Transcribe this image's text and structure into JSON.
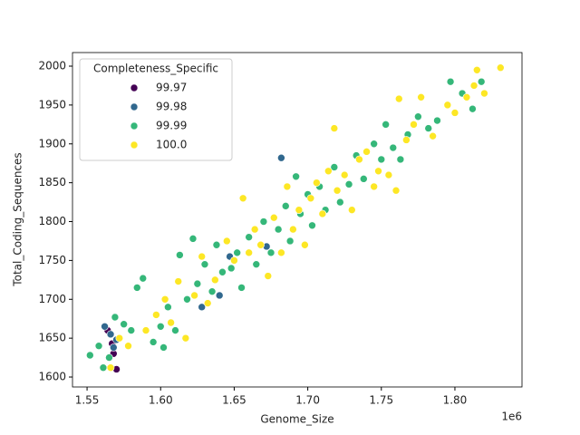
{
  "chart_data": {
    "type": "scatter",
    "x_label": "Genome_Size",
    "y_label": "Total_Coding_Sequences",
    "x_offset_label": "1e6",
    "legend_title": "Completeness_Specific",
    "legend_position": "upper-left",
    "grid": false,
    "xlim": [
      1540100,
      1845600
    ],
    "ylim": [
      1587.2,
      2017.5
    ],
    "xticks": [
      {
        "value": 1550000,
        "label": "1.55"
      },
      {
        "value": 1600000,
        "label": "1.60"
      },
      {
        "value": 1650000,
        "label": "1.65"
      },
      {
        "value": 1700000,
        "label": "1.70"
      },
      {
        "value": 1750000,
        "label": "1.75"
      },
      {
        "value": 1800000,
        "label": "1.80"
      }
    ],
    "yticks": [
      1600,
      1650,
      1700,
      1750,
      1800,
      1850,
      1900,
      1950,
      2000
    ],
    "series": [
      {
        "name": "99.97",
        "color": "#440154",
        "x": [
          1567000,
          1570000,
          1564000,
          1568000
        ],
        "values": [
          1643,
          1610,
          1660,
          1630
        ]
      },
      {
        "name": "99.98",
        "color": "#31688e",
        "x": [
          1562000,
          1566000,
          1570000,
          1568000,
          1682000,
          1647000,
          1628000,
          1640000,
          1672000
        ],
        "values": [
          1665,
          1655,
          1648,
          1638,
          1882,
          1755,
          1690,
          1705,
          1768
        ]
      },
      {
        "name": "99.99",
        "color": "#35b779",
        "x": [
          1552000,
          1558000,
          1561000,
          1565000,
          1569000,
          1575000,
          1580000,
          1584000,
          1588000,
          1595000,
          1600000,
          1602000,
          1605000,
          1610000,
          1613000,
          1618000,
          1622000,
          1625000,
          1630000,
          1635000,
          1638000,
          1642000,
          1648000,
          1652000,
          1655000,
          1660000,
          1665000,
          1670000,
          1675000,
          1680000,
          1685000,
          1688000,
          1692000,
          1695000,
          1700000,
          1703000,
          1708000,
          1712000,
          1718000,
          1722000,
          1728000,
          1733000,
          1738000,
          1745000,
          1750000,
          1753000,
          1758000,
          1763000,
          1768000,
          1775000,
          1782000,
          1788000,
          1797000,
          1805000,
          1812000,
          1818000
        ],
        "values": [
          1628,
          1640,
          1612,
          1625,
          1677,
          1668,
          1660,
          1715,
          1727,
          1645,
          1665,
          1638,
          1690,
          1660,
          1757,
          1700,
          1778,
          1720,
          1745,
          1710,
          1770,
          1735,
          1740,
          1760,
          1715,
          1780,
          1745,
          1800,
          1760,
          1790,
          1820,
          1775,
          1858,
          1810,
          1835,
          1795,
          1845,
          1815,
          1870,
          1825,
          1848,
          1885,
          1855,
          1900,
          1880,
          1925,
          1895,
          1880,
          1912,
          1935,
          1920,
          1930,
          1980,
          1965,
          1945,
          1980
        ]
      },
      {
        "name": "100.0",
        "color": "#fde725",
        "x": [
          1566000,
          1572000,
          1578000,
          1590000,
          1597000,
          1603000,
          1607000,
          1612000,
          1617000,
          1623000,
          1628000,
          1632000,
          1637000,
          1645000,
          1650000,
          1656000,
          1660000,
          1664000,
          1668000,
          1673000,
          1677000,
          1682000,
          1686000,
          1690000,
          1694000,
          1698000,
          1702000,
          1706000,
          1710000,
          1714000,
          1718000,
          1720000,
          1725000,
          1730000,
          1735000,
          1740000,
          1745000,
          1748000,
          1755000,
          1760000,
          1762000,
          1767000,
          1772000,
          1777000,
          1785000,
          1795000,
          1800000,
          1808000,
          1813000,
          1815000,
          1820000,
          1831000
        ],
        "values": [
          1612,
          1650,
          1640,
          1660,
          1680,
          1700,
          1670,
          1723,
          1650,
          1705,
          1755,
          1695,
          1725,
          1775,
          1750,
          1830,
          1760,
          1790,
          1770,
          1730,
          1805,
          1760,
          1845,
          1790,
          1815,
          1770,
          1830,
          1850,
          1810,
          1865,
          1920,
          1840,
          1860,
          1815,
          1880,
          1890,
          1845,
          1865,
          1860,
          1840,
          1958,
          1905,
          1925,
          1960,
          1910,
          1950,
          1940,
          1960,
          1975,
          1995,
          1965,
          1998
        ]
      }
    ]
  }
}
